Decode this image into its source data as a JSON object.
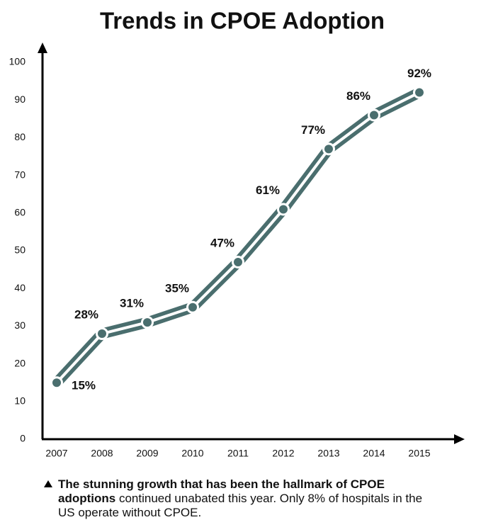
{
  "chart_data": {
    "type": "line",
    "title": "Trends in CPOE Adoption",
    "categories": [
      "2007",
      "2008",
      "2009",
      "2010",
      "2011",
      "2012",
      "2013",
      "2014",
      "2015"
    ],
    "values": [
      15,
      28,
      31,
      35,
      47,
      61,
      77,
      86,
      92
    ],
    "value_labels": [
      "15%",
      "28%",
      "31%",
      "35%",
      "47%",
      "61%",
      "77%",
      "86%",
      "92%"
    ],
    "color": "#4a6e6e",
    "ylim": [
      0,
      100
    ],
    "yticks": [
      0,
      10,
      20,
      30,
      40,
      50,
      60,
      70,
      80,
      90,
      100
    ],
    "grid": false,
    "note_bold": "The stunning growth that has been the hallmark of CPOE adoptions",
    "note": "continued unabated this year. Only 8% of hospitals in the US operate without CPOE."
  }
}
